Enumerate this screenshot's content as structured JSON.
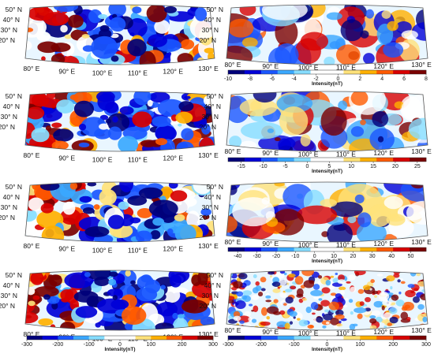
{
  "panels": [
    {
      "id": "left-1",
      "lat_labels": [
        "50° N",
        "40° N",
        "30° N",
        "20° N"
      ],
      "lon_labels": [
        "80° E",
        "90° E",
        "100° E",
        "110° E",
        "120° E",
        "130° E"
      ]
    },
    {
      "id": "right-1",
      "lat_labels": [
        "50° N",
        "40° N",
        "30° N",
        "20° N"
      ],
      "lon_labels": [
        "80° E",
        "90° E",
        "100° E",
        "110° E",
        "120° E",
        "130° E"
      ],
      "colorbar": {
        "ticks": [
          "-10",
          "-8",
          "-6",
          "-4",
          "-2",
          "0",
          "2",
          "4",
          "6",
          "8"
        ],
        "title": "Intensity(nT)",
        "range": [
          -10,
          8
        ]
      }
    },
    {
      "id": "left-2",
      "lat_labels": [
        "50° N",
        "40° N",
        "30° N",
        "20° N"
      ],
      "lon_labels": [
        "80° E",
        "90° E",
        "100° E",
        "110° E",
        "120° E",
        "130° E"
      ]
    },
    {
      "id": "right-2",
      "lat_labels": [
        "50° N",
        "40° N",
        "30° N",
        "20° N"
      ],
      "lon_labels": [
        "80° E",
        "90° E",
        "100° E",
        "110° E",
        "120° E",
        "130° E"
      ],
      "colorbar": {
        "ticks": [
          "-15",
          "-10",
          "-5",
          "0",
          "5",
          "10",
          "15",
          "20",
          "25"
        ],
        "title": "Intensity(nT)",
        "range": [
          -18,
          27
        ]
      }
    },
    {
      "id": "left-3",
      "lat_labels": [
        "50° N",
        "40° N",
        "30° N",
        "20° N"
      ],
      "lon_labels": [
        "80° E",
        "90° E",
        "100° E",
        "110° E",
        "120° E",
        "130° E"
      ]
    },
    {
      "id": "right-3",
      "lat_labels": [
        "50° N",
        "40° N",
        "30° N",
        "20° N"
      ],
      "lon_labels": [
        "80° E",
        "90° E",
        "100° E",
        "110° E",
        "120° E",
        "130° E"
      ],
      "colorbar": {
        "ticks": [
          "-40",
          "-30",
          "-20",
          "-10",
          "0",
          "10",
          "20",
          "30",
          "40",
          "50"
        ],
        "title": "Intensity(nT)",
        "range": [
          -45,
          58
        ]
      }
    },
    {
      "id": "left-4",
      "lat_labels": [
        "50° N",
        "40° N",
        "30° N",
        "20° N"
      ],
      "lon_labels": [
        "80° E",
        "90° E",
        "100° E",
        "110° E",
        "120° E",
        "130° E"
      ],
      "colorbar": {
        "ticks": [
          "-300",
          "-200",
          "-100",
          "0",
          "100",
          "200",
          "300"
        ],
        "title": "Intensity(nT)",
        "range": [
          -300,
          300
        ]
      }
    },
    {
      "id": "right-4",
      "lat_labels": [
        "50° N",
        "40° N",
        "30° N",
        "20° N"
      ],
      "lon_labels": [
        "80° E",
        "90° E",
        "100° E",
        "110° E",
        "120° E",
        "130° E"
      ],
      "colorbar": {
        "ticks": [
          "-300",
          "-200",
          "-100",
          "0",
          "100",
          "200",
          "300"
        ],
        "title": "Intensity(nT)",
        "range": [
          -300,
          300
        ]
      }
    }
  ],
  "colormap": [
    "#00007a",
    "#0000d8",
    "#1a56ff",
    "#3aa8ff",
    "#86ddff",
    "#ffffff",
    "#ffffff",
    "#ffe27a",
    "#ffb000",
    "#ff5a00",
    "#d80000",
    "#7a0000"
  ]
}
